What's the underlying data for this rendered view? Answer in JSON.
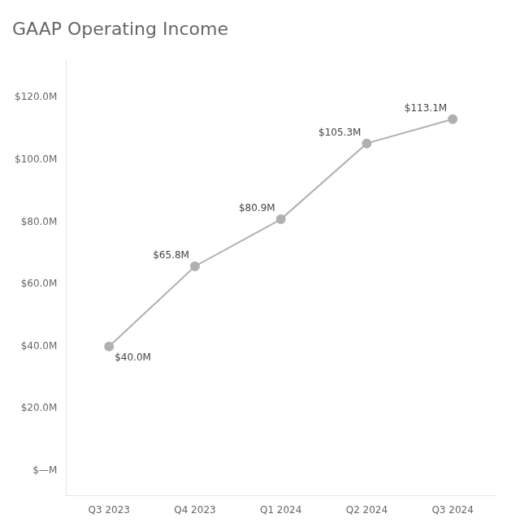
{
  "chart_data": {
    "type": "line",
    "title": "GAAP Operating Income",
    "categories": [
      "Q3 2023",
      "Q4 2023",
      "Q1 2024",
      "Q2 2024",
      "Q3 2024"
    ],
    "values": [
      40.0,
      65.8,
      80.9,
      105.3,
      113.1
    ],
    "value_labels": [
      "$40.0M",
      "$65.8M",
      "$80.9M",
      "$105.3M",
      "$113.1M"
    ],
    "color": "#b0b0b0",
    "ylim": [
      -8,
      132
    ],
    "yticks": [
      {
        "value": 0,
        "label": "$—M"
      },
      {
        "value": 20,
        "label": "$20.0M"
      },
      {
        "value": 40,
        "label": "$40.0M"
      },
      {
        "value": 60,
        "label": "$60.0M"
      },
      {
        "value": 80,
        "label": "$80.0M"
      },
      {
        "value": 100,
        "label": "$100.0M"
      },
      {
        "value": 120,
        "label": "$120.0M"
      }
    ],
    "grid": false,
    "data_labels": true
  }
}
